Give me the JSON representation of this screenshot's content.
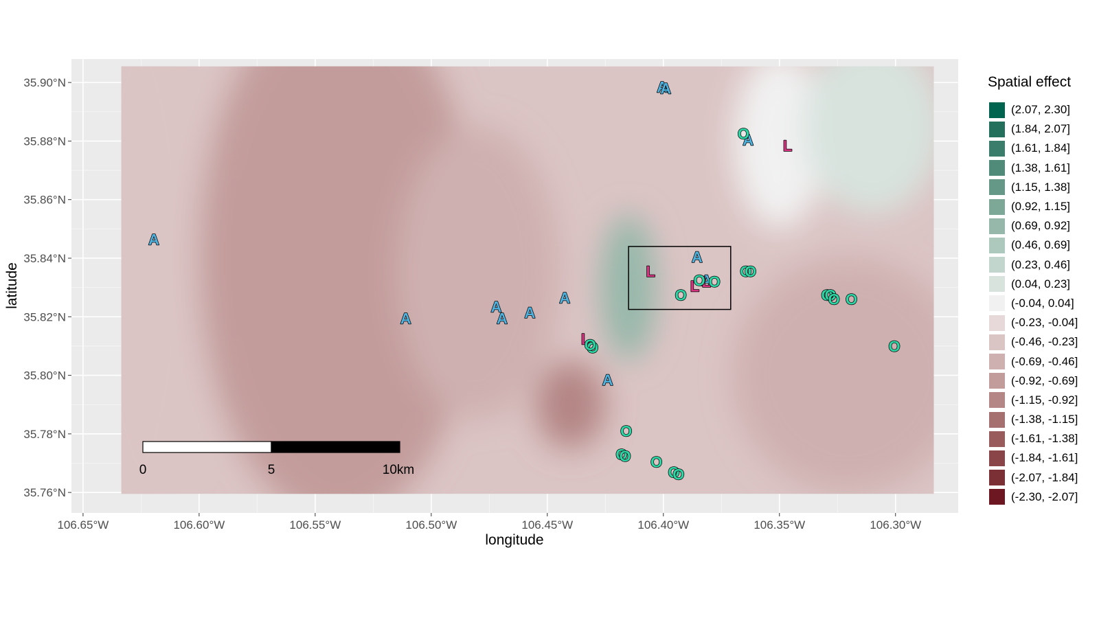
{
  "chart_data": {
    "type": "map",
    "xlabel": "longitude",
    "ylabel": "latitude",
    "xlim": [
      -106.655,
      -106.273
    ],
    "ylim": [
      35.753,
      35.908
    ],
    "xticks": [
      {
        "value": -106.65,
        "label": "106.65°W"
      },
      {
        "value": -106.6,
        "label": "106.60°W"
      },
      {
        "value": -106.55,
        "label": "106.55°W"
      },
      {
        "value": -106.5,
        "label": "106.50°W"
      },
      {
        "value": -106.45,
        "label": "106.45°W"
      },
      {
        "value": -106.4,
        "label": "106.40°W"
      },
      {
        "value": -106.35,
        "label": "106.35°W"
      },
      {
        "value": -106.3,
        "label": "106.30°W"
      }
    ],
    "yticks": [
      {
        "value": 35.76,
        "label": "35.76°N"
      },
      {
        "value": 35.78,
        "label": "35.78°N"
      },
      {
        "value": 35.8,
        "label": "35.80°N"
      },
      {
        "value": 35.82,
        "label": "35.82°N"
      },
      {
        "value": 35.84,
        "label": "35.84°N"
      },
      {
        "value": 35.86,
        "label": "35.86°N"
      },
      {
        "value": 35.88,
        "label": "35.88°N"
      },
      {
        "value": 35.9,
        "label": "35.90°N"
      }
    ],
    "grid": true,
    "raster_extent": {
      "lon": [
        -106.6335,
        -106.2835
      ],
      "lat": [
        35.7595,
        35.9055
      ]
    },
    "legend": {
      "title": "Spatial effect",
      "position": "right",
      "items": [
        {
          "label": "(2.07, 2.30]",
          "color": "#00644e"
        },
        {
          "label": "(1.84, 2.07]",
          "color": "#23715c"
        },
        {
          "label": "(1.61, 1.84]",
          "color": "#3a7d6a"
        },
        {
          "label": "(1.38, 1.61]",
          "color": "#508a79"
        },
        {
          "label": "(1.15, 1.38]",
          "color": "#669888"
        },
        {
          "label": "(0.92, 1.15]",
          "color": "#7da898"
        },
        {
          "label": "(0.69, 0.92]",
          "color": "#96b8aa"
        },
        {
          "label": "(0.46, 0.69]",
          "color": "#adc8bd"
        },
        {
          "label": "(0.23, 0.46]",
          "color": "#c3d6ce"
        },
        {
          "label": "(0.04, 0.23]",
          "color": "#d8e3de"
        },
        {
          "label": "(-0.04, 0.04]",
          "color": "#f1f1f1"
        },
        {
          "label": "(-0.23, -0.04]",
          "color": "#e7d9d9"
        },
        {
          "label": "(-0.46, -0.23]",
          "color": "#dbc4c4"
        },
        {
          "label": "(-0.69, -0.46]",
          "color": "#cfb0b0"
        },
        {
          "label": "(-0.92, -0.69]",
          "color": "#c29c9b"
        },
        {
          "label": "(-1.15, -0.92]",
          "color": "#b48685"
        },
        {
          "label": "(-1.38, -1.15]",
          "color": "#a77070"
        },
        {
          "label": "(-1.61, -1.38]",
          "color": "#995b5c"
        },
        {
          "label": "(-1.84, -1.61]",
          "color": "#8a4548"
        },
        {
          "label": "(-2.07, -1.84]",
          "color": "#7b3035"
        },
        {
          "label": "(-2.30, -2.07]",
          "color": "#6c1722"
        }
      ]
    },
    "surface_centers": [
      {
        "lon": -106.625,
        "lat": 35.84,
        "bin": "(-0.46, -0.23]",
        "spread_lon": 0.03,
        "spread_lat": 0.09
      },
      {
        "lon": -106.54,
        "lat": 35.84,
        "bin": "(-0.92, -0.69]",
        "spread_lon": 0.06,
        "spread_lat": 0.09
      },
      {
        "lon": -106.48,
        "lat": 35.835,
        "bin": "(-0.69, -0.46]",
        "spread_lon": 0.035,
        "spread_lat": 0.05
      },
      {
        "lon": -106.44,
        "lat": 35.79,
        "bin": "(-1.15, -0.92]",
        "spread_lon": 0.015,
        "spread_lat": 0.015
      },
      {
        "lon": -106.415,
        "lat": 35.83,
        "bin": "(0.69, 0.92]",
        "spread_lon": 0.012,
        "spread_lat": 0.025
      },
      {
        "lon": -106.35,
        "lat": 35.88,
        "bin": "(-0.04, 0.04]",
        "spread_lon": 0.02,
        "spread_lat": 0.03
      },
      {
        "lon": -106.31,
        "lat": 35.885,
        "bin": "(0.04, 0.23]",
        "spread_lon": 0.03,
        "spread_lat": 0.03
      },
      {
        "lon": -106.32,
        "lat": 35.8,
        "bin": "(-0.69, -0.46]",
        "spread_lon": 0.05,
        "spread_lat": 0.04
      }
    ],
    "study_box": {
      "lon": [
        -106.415,
        -106.371
      ],
      "lat": [
        35.8225,
        35.844
      ]
    },
    "scale_bar": {
      "labels": [
        "0",
        "5",
        "10km"
      ]
    },
    "points": [
      {
        "lon": -106.6195,
        "lat": 35.8465,
        "label": "A",
        "color": "#4fb2df"
      },
      {
        "lon": -106.511,
        "lat": 35.8195,
        "label": "A",
        "color": "#4fb2df"
      },
      {
        "lon": -106.472,
        "lat": 35.8235,
        "label": "A",
        "color": "#4fb2df"
      },
      {
        "lon": -106.4695,
        "lat": 35.8195,
        "label": "A",
        "color": "#4fb2df"
      },
      {
        "lon": -106.4575,
        "lat": 35.8215,
        "label": "A",
        "color": "#4fb2df"
      },
      {
        "lon": -106.4425,
        "lat": 35.8265,
        "label": "A",
        "color": "#4fb2df"
      },
      {
        "lon": -106.424,
        "lat": 35.7985,
        "label": "A",
        "color": "#4fb2df"
      },
      {
        "lon": -106.4005,
        "lat": 35.8985,
        "label": "A",
        "color": "#4fb2df"
      },
      {
        "lon": -106.399,
        "lat": 35.898,
        "label": "A",
        "color": "#4fb2df"
      },
      {
        "lon": -106.3855,
        "lat": 35.8405,
        "label": "A",
        "color": "#4fb2df"
      },
      {
        "lon": -106.3815,
        "lat": 35.8325,
        "label": "A",
        "color": "#4fb2df"
      },
      {
        "lon": -106.3635,
        "lat": 35.8805,
        "label": "A",
        "color": "#4fb2df"
      },
      {
        "lon": -106.4335,
        "lat": 35.8125,
        "label": "L",
        "color": "#d63380"
      },
      {
        "lon": -106.4055,
        "lat": 35.8355,
        "label": "L",
        "color": "#d63380"
      },
      {
        "lon": -106.3865,
        "lat": 35.8305,
        "label": "L",
        "color": "#d63380"
      },
      {
        "lon": -106.3815,
        "lat": 35.832,
        "label": "L",
        "color": "#d63380"
      },
      {
        "lon": -106.3465,
        "lat": 35.8785,
        "label": "L",
        "color": "#d63380"
      },
      {
        "lon": -106.4305,
        "lat": 35.8095,
        "label": "O",
        "color": "#2ed6a6"
      },
      {
        "lon": -106.4315,
        "lat": 35.8105,
        "label": "O",
        "color": "#2ed6a6"
      },
      {
        "lon": -106.416,
        "lat": 35.781,
        "label": "O",
        "color": "#2ed6a6"
      },
      {
        "lon": -106.418,
        "lat": 35.773,
        "label": "O",
        "color": "#2ed6a6"
      },
      {
        "lon": -106.4165,
        "lat": 35.7725,
        "label": "O",
        "color": "#2ed6a6"
      },
      {
        "lon": -106.403,
        "lat": 35.7705,
        "label": "O",
        "color": "#2ed6a6"
      },
      {
        "lon": -106.3955,
        "lat": 35.767,
        "label": "O",
        "color": "#2ed6a6"
      },
      {
        "lon": -106.3935,
        "lat": 35.7663,
        "label": "O",
        "color": "#2ed6a6"
      },
      {
        "lon": -106.3925,
        "lat": 35.8275,
        "label": "O",
        "color": "#2ed6a6"
      },
      {
        "lon": -106.3845,
        "lat": 35.8325,
        "label": "O",
        "color": "#2ed6a6"
      },
      {
        "lon": -106.378,
        "lat": 35.832,
        "label": "O",
        "color": "#2ed6a6"
      },
      {
        "lon": -106.3655,
        "lat": 35.8825,
        "label": "O",
        "color": "#2ed6a6"
      },
      {
        "lon": -106.3645,
        "lat": 35.8355,
        "label": "O",
        "color": "#2ed6a6"
      },
      {
        "lon": -106.3625,
        "lat": 35.8355,
        "label": "O",
        "color": "#2ed6a6"
      },
      {
        "lon": -106.3295,
        "lat": 35.8275,
        "label": "O",
        "color": "#2ed6a6"
      },
      {
        "lon": -106.328,
        "lat": 35.8275,
        "label": "O",
        "color": "#2ed6a6"
      },
      {
        "lon": -106.3265,
        "lat": 35.826,
        "label": "O",
        "color": "#2ed6a6"
      },
      {
        "lon": -106.319,
        "lat": 35.826,
        "label": "O",
        "color": "#2ed6a6"
      },
      {
        "lon": -106.3005,
        "lat": 35.81,
        "label": "O",
        "color": "#2ed6a6"
      }
    ]
  }
}
